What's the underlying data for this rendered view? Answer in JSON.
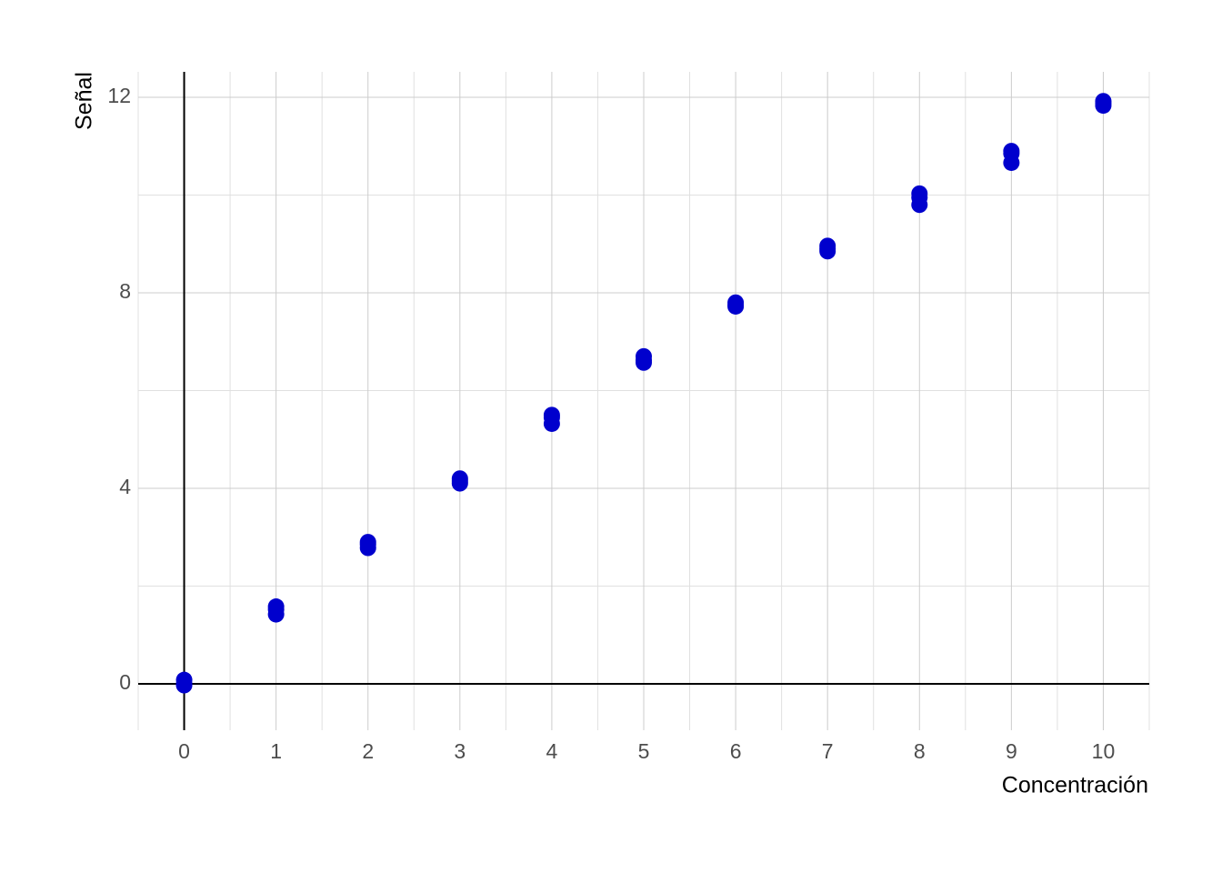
{
  "chart_data": {
    "type": "scatter",
    "x_label": "Concentración",
    "y_label": "Señal",
    "x": [
      0,
      0,
      0,
      1,
      1,
      1,
      2,
      2,
      2,
      3,
      3,
      3,
      4,
      4,
      4,
      5,
      5,
      5,
      6,
      6,
      6,
      7,
      7,
      7,
      8,
      8,
      8,
      9,
      9,
      9,
      10,
      10,
      10
    ],
    "values": [
      0.08,
      0.0,
      -0.03,
      1.58,
      1.52,
      1.42,
      2.9,
      2.85,
      2.78,
      4.2,
      4.15,
      4.1,
      5.5,
      5.45,
      5.32,
      6.7,
      6.62,
      6.57,
      7.8,
      7.75,
      7.72,
      8.96,
      8.9,
      8.85,
      10.03,
      9.95,
      9.8,
      10.9,
      10.85,
      10.66,
      11.92,
      11.88,
      11.83
    ],
    "color": "#0000cd",
    "xlim": [
      -0.5,
      10.5
    ],
    "ylim": [
      -0.95,
      12.52
    ],
    "xticks": [
      0,
      1,
      2,
      3,
      4,
      5,
      6,
      7,
      8,
      9,
      10
    ],
    "yticks": [
      0,
      4,
      8,
      12
    ],
    "grid": true
  }
}
